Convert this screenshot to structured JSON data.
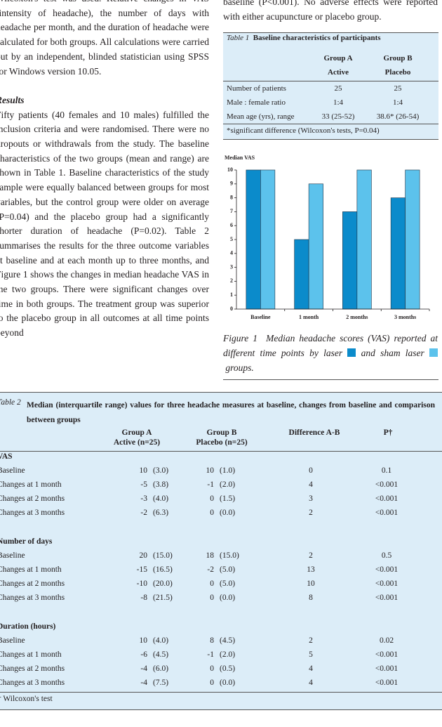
{
  "left_column": {
    "paragraph_1": "Wilcoxon's test was used. Relative changes in VAS (intensity of headache), the number of days with headache per month, and the duration of headache were calculated for both groups. All calculations were carried out by an independent, blinded statistician using SPSS for Windows version 10.05.",
    "heading": "Results",
    "paragraph_2": "Fifty patients (40 females and 10 males) fulfilled the inclusion criteria and were randomised. There were no dropouts or withdrawals from the study. The baseline characteristics of the two groups (mean and range) are shown in Table 1. Baseline characteristics of the study sample were equally balanced between groups for most variables, but the control group were older on average (P=0.04) and the placebo group had a significantly shorter duration of headache (P=0.02). Table 2 summarises the results for the three outcome variables at baseline and at each month up to three months, and Figure 1 shows the changes in median headache VAS in the two groups. There were significant changes over time in both groups. The treatment group was superior to the placebo group in all outcomes at all time points beyond"
  },
  "right_column": {
    "paragraph": "baseline (P<0.001). No adverse effects were reported with either acupuncture or placebo group."
  },
  "table_1": {
    "label": "Table 1",
    "title": "Baseline characteristics of participants",
    "columns": [
      [
        "Group A",
        "Active"
      ],
      [
        "Group B",
        "Placebo"
      ]
    ],
    "rows": [
      [
        "Number of patients",
        "25",
        "25"
      ],
      [
        "Male : female ratio",
        "1:4",
        "1:4"
      ],
      [
        "Mean age (yrs), range",
        "33 (25-52)",
        "38.6* (26-54)"
      ]
    ],
    "footnote": "*significant difference (Wilcoxon's tests, P=0.04)"
  },
  "chart_data": {
    "type": "bar",
    "y_label": "Median VAS",
    "categories": [
      "Baseline",
      "1 month",
      "2 months",
      "3 months"
    ],
    "series": [
      {
        "color": "#0b8bcb",
        "values": [
          10,
          5,
          7,
          8
        ]
      },
      {
        "color": "#5cc2ec",
        "values": [
          10,
          9,
          10,
          10
        ]
      }
    ],
    "ylim": [
      0,
      10
    ],
    "yticks": [
      0,
      1,
      2,
      3,
      4,
      5,
      6,
      7,
      8,
      9,
      10
    ]
  },
  "figure_caption": {
    "label": "Figure 1",
    "text_1": "Median headache scores (VAS) reported at different time points by laser",
    "text_2": "and sham laser",
    "text_3": "groups."
  },
  "table_2": {
    "label": "Table 2",
    "title": "Median (interquartile range) values for three headache measures at baseline, changes from baseline and comparison between groups",
    "columns": [
      [
        "Group A",
        "Active (n=25)"
      ],
      [
        "Group B",
        "Placebo (n=25)"
      ],
      [
        "Difference A-B"
      ],
      [
        "P†"
      ]
    ],
    "sections": [
      {
        "name": "VAS",
        "rows": [
          [
            "Baseline",
            "10",
            "(3.0)",
            "10",
            "(1.0)",
            "0",
            "0.1"
          ],
          [
            "Changes at 1 month",
            "-5",
            "(3.8)",
            "-1",
            "(2.0)",
            "4",
            "<0.001"
          ],
          [
            "Changes at 2 months",
            "-3",
            "(4.0)",
            "0",
            "(1.5)",
            "3",
            "<0.001"
          ],
          [
            "Changes at 3 months",
            "-2",
            "(6.3)",
            "0",
            "(0.0)",
            "2",
            "<0.001"
          ]
        ]
      },
      {
        "name": "Number of days",
        "rows": [
          [
            "Baseline",
            "20",
            "(15.0)",
            "18",
            "(15.0)",
            "2",
            "0.5"
          ],
          [
            "Changes at 1 month",
            "-15",
            "(16.5)",
            "-2",
            "(5.0)",
            "13",
            "<0.001"
          ],
          [
            "Changes at 2 months",
            "-10",
            "(20.0)",
            "0",
            "(5.0)",
            "10",
            "<0.001"
          ],
          [
            "Changes at 3 months",
            "-8",
            "(21.5)",
            "0",
            "(0.0)",
            "8",
            "<0.001"
          ]
        ]
      },
      {
        "name": "Duration (hours)",
        "rows": [
          [
            "Baseline",
            "10",
            "(4.0)",
            "8",
            "(4.5)",
            "2",
            "0.02"
          ],
          [
            "Changes at 1 month",
            "-6",
            "(4.5)",
            "-1",
            "(2.0)",
            "5",
            "<0.001"
          ],
          [
            "Changes at 2 months",
            "-4",
            "(6.0)",
            "0",
            "(0.5)",
            "4",
            "<0.001"
          ],
          [
            "Changes at 3 months",
            "-4",
            "(7.5)",
            "0",
            "(0.0)",
            "4",
            "<0.001"
          ]
        ]
      }
    ],
    "footnote": "† Wilcoxon's test"
  }
}
